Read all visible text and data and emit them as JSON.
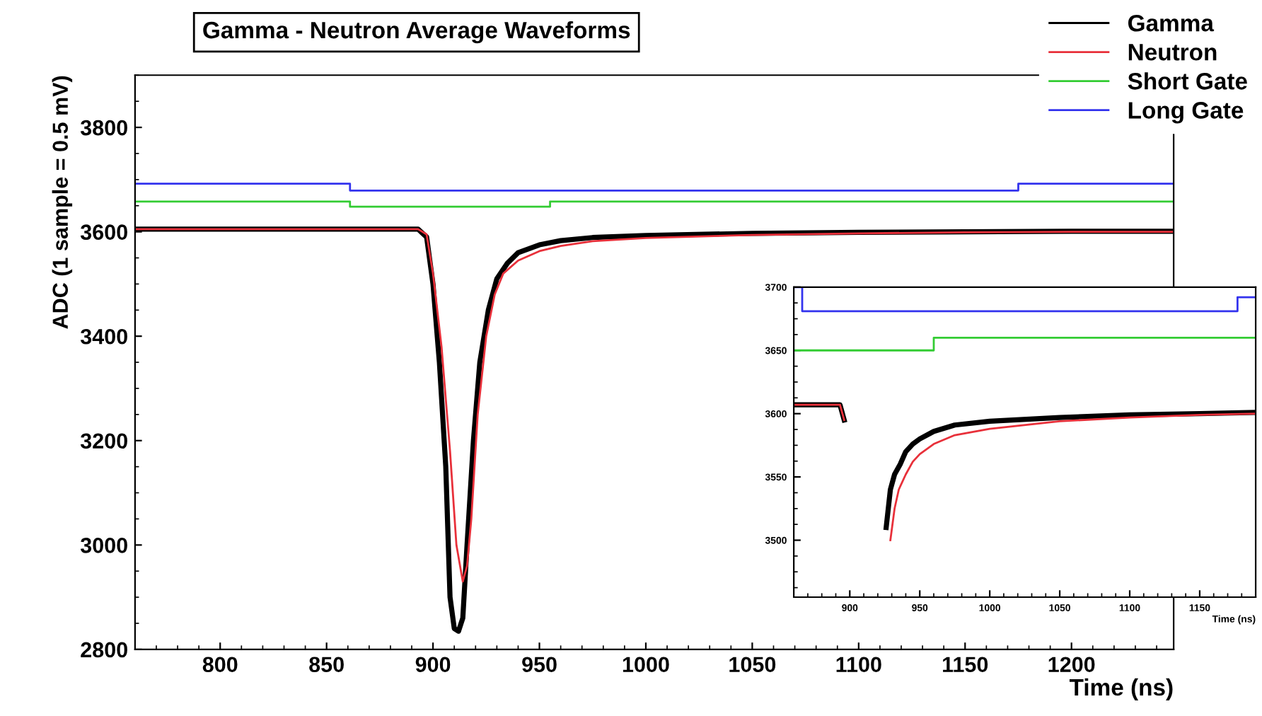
{
  "chart_data": [
    {
      "type": "line",
      "title": "Gamma - Neutron Average Waveforms",
      "xlabel": "Time (ns)",
      "ylabel": "ADC (1 sample = 0.5 mV)",
      "xlim": [
        760,
        1248
      ],
      "ylim": [
        2800,
        3900
      ],
      "xticks": [
        800,
        850,
        900,
        950,
        1000,
        1050,
        1100,
        1150,
        1200
      ],
      "yticks": [
        2800,
        3000,
        3200,
        3400,
        3600,
        3800
      ],
      "legend": "top right",
      "grid": false,
      "series": [
        {
          "name": "Gamma",
          "color": "#000000",
          "x": [
            760,
            893,
            897,
            900,
            903,
            906,
            908,
            910,
            912,
            914,
            916,
            919,
            922,
            926,
            930,
            935,
            940,
            950,
            960,
            975,
            1000,
            1050,
            1100,
            1150,
            1200,
            1248
          ],
          "values": [
            3605,
            3605,
            3590,
            3500,
            3350,
            3150,
            2900,
            2840,
            2835,
            2860,
            3000,
            3200,
            3350,
            3450,
            3510,
            3540,
            3560,
            3575,
            3583,
            3589,
            3593,
            3597,
            3599,
            3600,
            3601,
            3601
          ]
        },
        {
          "name": "Neutron",
          "color": "#e8303a",
          "x": [
            760,
            893,
            897,
            900,
            904,
            908,
            911,
            914,
            916,
            918,
            921,
            925,
            929,
            933,
            940,
            950,
            960,
            975,
            1000,
            1050,
            1100,
            1150,
            1200,
            1248
          ],
          "values": [
            3605,
            3605,
            3595,
            3520,
            3380,
            3180,
            3000,
            2930,
            2960,
            3050,
            3250,
            3400,
            3480,
            3520,
            3545,
            3563,
            3573,
            3582,
            3588,
            3594,
            3597,
            3599,
            3600,
            3600
          ]
        },
        {
          "name": "Short Gate",
          "color": "#33cc33",
          "type": "step",
          "x": [
            760,
            861,
            955,
            1248
          ],
          "values": [
            3658,
            3648,
            3658,
            3658
          ]
        },
        {
          "name": "Long Gate",
          "color": "#3333ee",
          "type": "step",
          "x": [
            760,
            861,
            1175,
            1248
          ],
          "values": [
            3692,
            3679,
            3692,
            3692
          ]
        }
      ]
    },
    {
      "type": "line",
      "xlabel": "Time (ns)",
      "xlim": [
        860,
        1190
      ],
      "ylim": [
        3455,
        3700
      ],
      "xticks": [
        900,
        950,
        1000,
        1050,
        1100,
        1150
      ],
      "yticks": [
        3500,
        3550,
        3600,
        3650,
        3700
      ],
      "grid": false,
      "series": [
        {
          "color": "#000000",
          "x": [
            860,
            893,
            896,
            899,
            924,
            926,
            929,
            932,
            936,
            940,
            945,
            950,
            960,
            975,
            1000,
            1050,
            1100,
            1150,
            1190
          ],
          "values": [
            3607,
            3607,
            3595,
            null,
            null,
            3510,
            3540,
            3552,
            3560,
            3570,
            3576,
            3580,
            3586,
            3591,
            3594,
            3597,
            3599,
            3600,
            3601
          ]
        },
        {
          "color": "#e8303a",
          "x": [
            860,
            893,
            896,
            900,
            927,
            929,
            932,
            935,
            940,
            945,
            950,
            960,
            975,
            1000,
            1050,
            1100,
            1150,
            1190
          ],
          "values": [
            3607,
            3607,
            3595,
            null,
            null,
            3500,
            3525,
            3540,
            3552,
            3562,
            3568,
            3576,
            3583,
            3588,
            3594,
            3597,
            3599,
            3600
          ]
        },
        {
          "color": "#33cc33",
          "type": "step",
          "x": [
            860,
            960,
            1190
          ],
          "values": [
            3650,
            3660,
            3660
          ]
        },
        {
          "color": "#3333ee",
          "type": "step",
          "x": [
            860,
            866,
            1177,
            1190
          ],
          "values": [
            3700,
            3681,
            3692,
            3692
          ]
        }
      ]
    }
  ]
}
